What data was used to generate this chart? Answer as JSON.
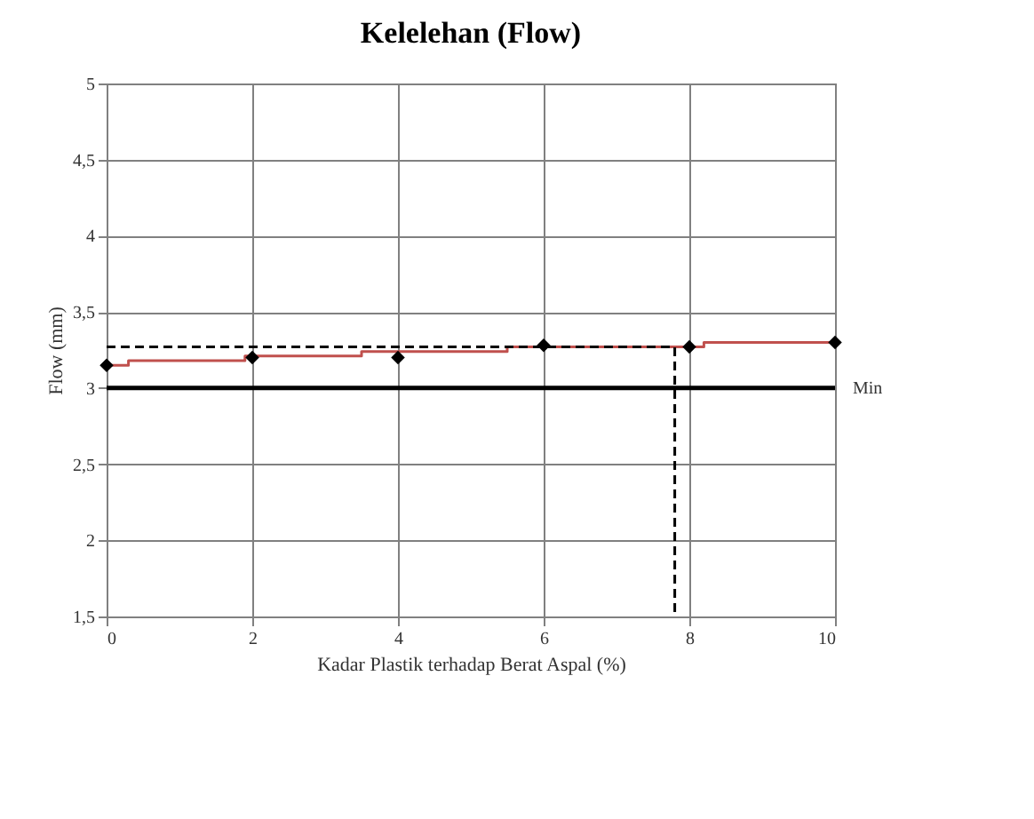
{
  "chart_data": {
    "type": "scatter",
    "title": "Kelelehan (Flow)",
    "xlabel": "Kadar Plastik terhadap Berat Aspal (%)",
    "ylabel": "Flow (mm)",
    "xlim": [
      0,
      10
    ],
    "xticks": [
      0,
      2,
      4,
      6,
      8,
      10
    ],
    "ylim": [
      1.5,
      5
    ],
    "yticks": [
      {
        "value": 1.5,
        "label": "1,5"
      },
      2,
      {
        "value": 2.5,
        "label": "2,5"
      },
      3,
      {
        "value": 3.5,
        "label": "3,5"
      },
      4,
      {
        "value": 4.5,
        "label": "4,5"
      },
      5
    ],
    "grid": true,
    "series": [
      {
        "type": "step",
        "color": "#c0504d",
        "x": [
          0,
          0.3,
          1.9,
          3.5,
          5.5,
          8.2,
          10
        ],
        "values": [
          3.15,
          3.18,
          3.21,
          3.24,
          3.27,
          3.3,
          3.3
        ],
        "marker": "none"
      },
      {
        "type": "line",
        "color": "#000000",
        "line_style": "dashed",
        "marker": "none",
        "x": [
          0,
          7.8,
          7.8
        ],
        "values": [
          3.27,
          3.27,
          1.5
        ]
      },
      {
        "color": "#000000",
        "marker": "diamond",
        "x": [
          0,
          2,
          4,
          6,
          8,
          10
        ],
        "values": [
          3.15,
          3.2,
          3.2,
          3.28,
          3.27,
          3.3
        ]
      }
    ],
    "ref_lines": [
      {
        "axis": "y",
        "value": 3,
        "label": "Min",
        "color": "#000000"
      }
    ]
  }
}
